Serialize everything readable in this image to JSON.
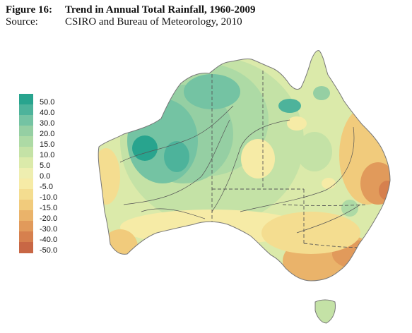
{
  "figure": {
    "label": "Figure 16:",
    "title": "Trend in Annual Total Rainfall, 1960-2009",
    "source_label": "Source:",
    "source_text": "CSIRO and Bureau of Meteorology, 2010"
  },
  "legend": {
    "levels": [
      {
        "label": "50.0",
        "color": "#28a48e"
      },
      {
        "label": "40.0",
        "color": "#4db39b"
      },
      {
        "label": "30.0",
        "color": "#74c3a3"
      },
      {
        "label": "20.0",
        "color": "#95cfa3"
      },
      {
        "label": "15.0",
        "color": "#addaa5"
      },
      {
        "label": "10.0",
        "color": "#c4e2a6"
      },
      {
        "label": "5.0",
        "color": "#dbeaaa"
      },
      {
        "label": "0.0",
        "color": "#eeeeb0"
      },
      {
        "label": "-5.0",
        "color": "#f6eba6"
      },
      {
        "label": "-10.0",
        "color": "#f4dd90"
      },
      {
        "label": "-15.0",
        "color": "#f1cb7c"
      },
      {
        "label": "-20.0",
        "color": "#eab36a"
      },
      {
        "label": "-30.0",
        "color": "#e19a5b"
      },
      {
        "label": "-40.0",
        "color": "#d6804e"
      },
      {
        "label": "-50.0",
        "color": "#c86745"
      }
    ]
  },
  "map": {
    "region": "Australia",
    "colors": {
      "outline": "#777777",
      "border": "#555555",
      "contour": "#555555"
    }
  }
}
